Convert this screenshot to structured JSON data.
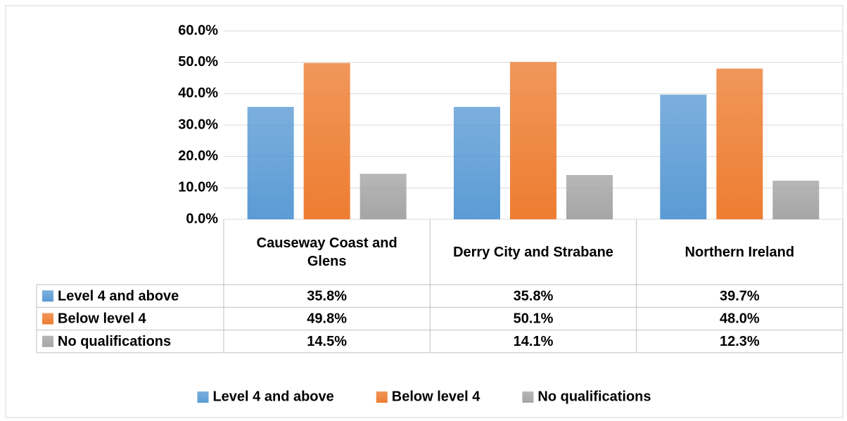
{
  "chart_data": {
    "type": "bar",
    "categories": [
      "Causeway Coast and Glens",
      "Derry City and Strabane",
      "Northern Ireland"
    ],
    "series": [
      {
        "name": "Level 4 and above",
        "color": "#5b9bd5",
        "values": [
          35.8,
          35.8,
          39.7
        ],
        "value_labels": [
          "35.8%",
          "35.8%",
          "39.7%"
        ]
      },
      {
        "name": "Below level 4",
        "color": "#ed7d31",
        "values": [
          49.8,
          50.1,
          48.0
        ],
        "value_labels": [
          "49.8%",
          "50.1%",
          "48.0%"
        ]
      },
      {
        "name": "No qualifications",
        "color": "#a5a5a5",
        "values": [
          14.5,
          14.1,
          12.3
        ],
        "value_labels": [
          "14.5%",
          "14.1%",
          "12.3%"
        ]
      }
    ],
    "ylim": [
      0,
      60
    ],
    "yticks": [
      {
        "value": 0,
        "label": "0.0%"
      },
      {
        "value": 10,
        "label": "10.0%"
      },
      {
        "value": 20,
        "label": "20.0%"
      },
      {
        "value": 30,
        "label": "30.0%"
      },
      {
        "value": 40,
        "label": "40.0%"
      },
      {
        "value": 50,
        "label": "50.0%"
      },
      {
        "value": 60,
        "label": "60.0%"
      }
    ],
    "grid": true,
    "legend": "bottom",
    "data_table": true
  }
}
